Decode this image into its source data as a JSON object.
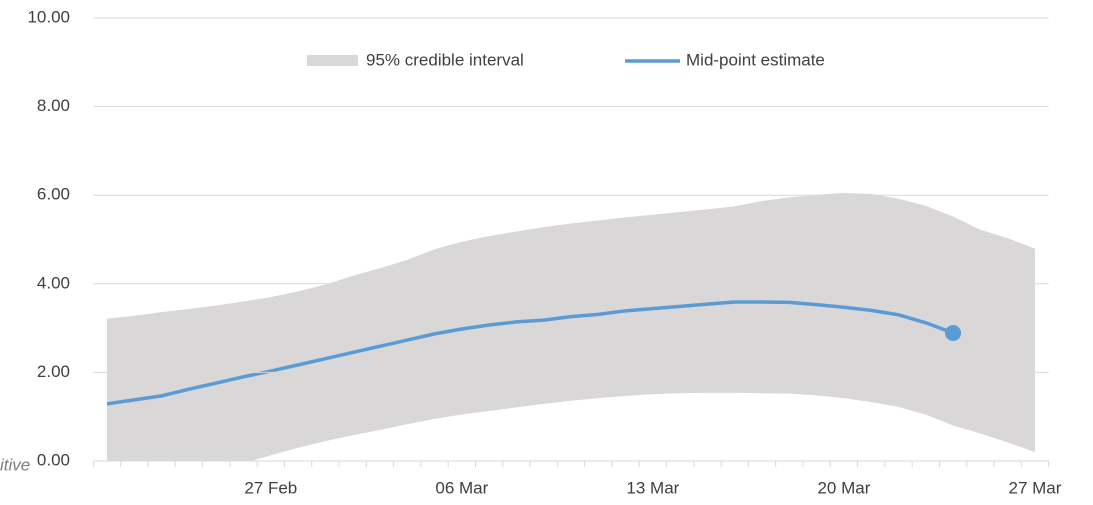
{
  "chart_data": {
    "type": "band-line",
    "annotation": "itive",
    "categories": [
      null,
      null,
      null,
      null,
      null,
      null,
      "27 Feb",
      null,
      null,
      null,
      null,
      null,
      null,
      "06 Mar",
      null,
      null,
      null,
      null,
      null,
      null,
      "13 Mar",
      null,
      null,
      null,
      null,
      null,
      null,
      "20 Mar",
      null,
      null,
      null,
      null,
      null,
      null,
      "27 Mar"
    ],
    "series": [
      {
        "name": "95% credible interval",
        "color": "#d9d7d7",
        "lower": [
          -0.7,
          -0.58,
          -0.46,
          -0.34,
          -0.22,
          -0.05,
          0.13,
          0.3,
          0.45,
          0.58,
          0.7,
          0.83,
          0.95,
          1.05,
          1.13,
          1.21,
          1.29,
          1.36,
          1.42,
          1.47,
          1.51,
          1.53,
          1.54,
          1.54,
          1.53,
          1.52,
          1.48,
          1.42,
          1.33,
          1.22,
          1.05,
          0.8,
          0.62,
          0.42,
          0.2
        ],
        "upper": [
          3.21,
          3.28,
          3.36,
          3.43,
          3.51,
          3.6,
          3.7,
          3.83,
          3.98,
          4.18,
          4.35,
          4.54,
          4.78,
          4.95,
          5.08,
          5.18,
          5.28,
          5.36,
          5.43,
          5.5,
          5.56,
          5.62,
          5.68,
          5.75,
          5.87,
          5.95,
          6.01,
          6.05,
          6.03,
          5.92,
          5.76,
          5.52,
          5.22,
          5.03,
          4.79
        ]
      },
      {
        "name": "Mid-point estimate",
        "color": "#5b9bd5",
        "end_marker": true,
        "values": [
          1.29,
          1.38,
          1.47,
          1.62,
          1.76,
          1.9,
          2.03,
          2.17,
          2.31,
          2.45,
          2.59,
          2.73,
          2.87,
          2.98,
          3.07,
          3.14,
          3.18,
          3.26,
          3.31,
          3.39,
          3.44,
          3.49,
          3.54,
          3.59,
          3.59,
          3.58,
          3.53,
          3.47,
          3.4,
          3.3,
          3.12,
          2.89,
          null,
          null,
          null
        ]
      }
    ],
    "ylim": [
      0,
      10
    ],
    "yticks": [
      {
        "value": 0,
        "label": "0.00"
      },
      {
        "value": 2,
        "label": "2.00"
      },
      {
        "value": 4,
        "label": "4.00"
      },
      {
        "value": 6,
        "label": "6.00"
      },
      {
        "value": 8,
        "label": "8.00"
      },
      {
        "value": 10,
        "label": "10.00"
      }
    ],
    "grid": true
  }
}
